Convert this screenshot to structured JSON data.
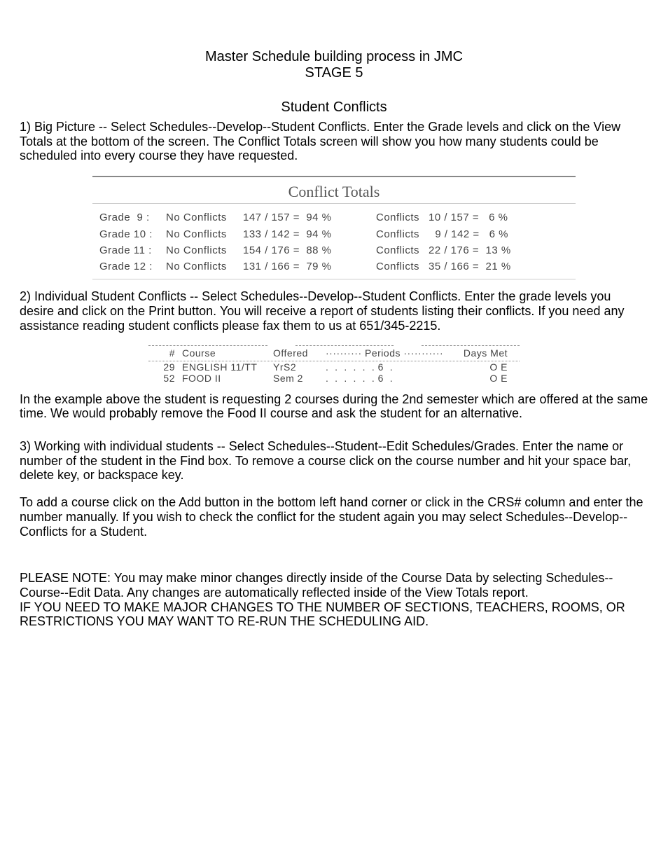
{
  "title_line1": "Master Schedule building process in JMC",
  "title_line2": "STAGE 5",
  "subtitle": "Student Conflicts",
  "para1": "1) Big Picture -- Select Schedules--Develop--Student Conflicts. Enter the Grade levels and click on the View Totals at the bottom of the screen. The Conflict Totals screen will show you how many students could be scheduled into every course they have requested.",
  "conflict_totals": {
    "title": "Conflict Totals",
    "rows": [
      {
        "grade": "Grade  9 :",
        "noconf": "No Conflicts",
        "noconf_val": "147 / 157 =  94 %",
        "conf": "Conflicts",
        "conf_val": "10 / 157 =   6 %"
      },
      {
        "grade": "Grade 10 :",
        "noconf": "No Conflicts",
        "noconf_val": "133 / 142 =  94 %",
        "conf": "Conflicts",
        "conf_val": "  9 / 142 =   6 %"
      },
      {
        "grade": "Grade 11 :",
        "noconf": "No Conflicts",
        "noconf_val": "154 / 176 =  88 %",
        "conf": "Conflicts",
        "conf_val": "22 / 176 =  13 %"
      },
      {
        "grade": "Grade 12 :",
        "noconf": "No Conflicts",
        "noconf_val": "131 / 166 =  79 %",
        "conf": "Conflicts",
        "conf_val": "35 / 166 =  21 %"
      }
    ]
  },
  "para2": "2) Individual Student Conflicts -- Select Schedules--Develop--Student Conflicts. Enter the grade levels you desire and click on the Print button. You will receive a report of students listing their conflicts. If you need any assistance reading student conflicts please fax them to us at 651/345-2215.",
  "course_table": {
    "header": {
      "num": "#",
      "course": "Course",
      "offered": "Offered",
      "periods": "·········· Periods ···········",
      "days": "Days Met"
    },
    "rows": [
      {
        "num": "29",
        "course": "ENGLISH 11/TT",
        "offered": "YrS2",
        "periods": ".  .  .  .  .  . 6  .",
        "days": "O E"
      },
      {
        "num": "52",
        "course": "FOOD II",
        "offered": "Sem 2",
        "periods": ".  .  .  .  .  . 6  .",
        "days": "O E"
      }
    ]
  },
  "para3": "In the example above the student is requesting 2 courses during the 2nd semester which are offered at the same time. We would probably remove the Food II course and ask the student for an alternative.",
  "para4": "3) Working with individual students -- Select Schedules--Student--Edit Schedules/Grades. Enter the name or number of the student in the Find box. To remove a course click on the course number and hit your space bar, delete key, or backspace key.",
  "para5": "To add a course click on the Add button in the bottom left hand corner or click in the CRS# column and enter the number manually. If you wish to check the conflict for the student again you may select Schedules--Develop--Conflicts for a Student.",
  "para6": "PLEASE NOTE: You may make minor changes directly inside of the Course Data by selecting Schedules--Course--Edit Data. Any changes are automatically reflected inside of the View Totals report.",
  "para7": "IF YOU NEED TO MAKE MAJOR CHANGES TO THE NUMBER OF SECTIONS, TEACHERS, ROOMS, OR RESTRICTIONS YOU MAY WANT TO RE-RUN THE SCHEDULING AID."
}
